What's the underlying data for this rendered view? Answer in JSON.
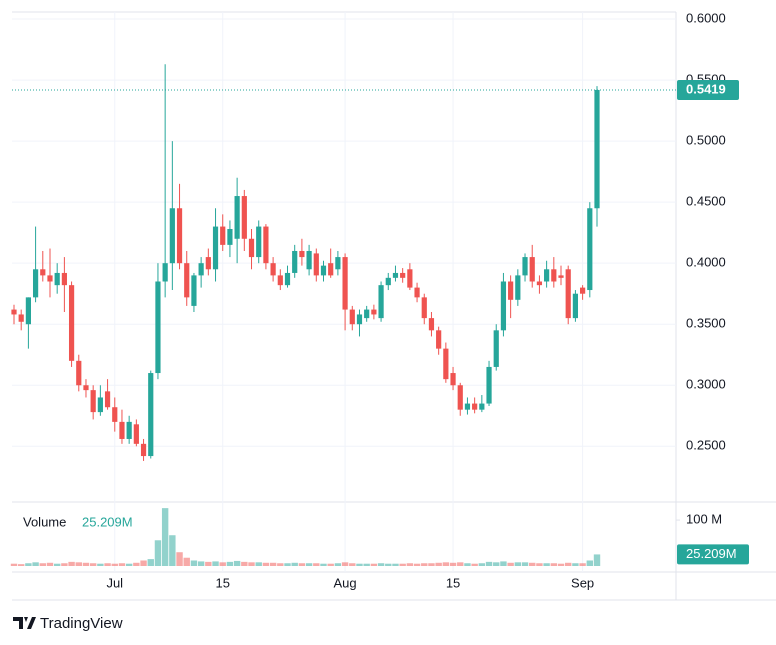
{
  "chart_data": {
    "type": "candlestick",
    "brand": "TradingView",
    "up_color": "#26a69a",
    "down_color": "#ef5350",
    "grid": true,
    "categories": [
      null,
      null,
      null,
      null,
      null,
      null,
      null,
      null,
      null,
      null,
      null,
      null,
      null,
      null,
      "Jul",
      null,
      null,
      null,
      null,
      null,
      null,
      null,
      null,
      null,
      null,
      null,
      null,
      null,
      null,
      "15",
      null,
      null,
      null,
      null,
      null,
      null,
      null,
      null,
      null,
      null,
      null,
      null,
      null,
      null,
      null,
      null,
      "Aug",
      null,
      null,
      null,
      null,
      null,
      null,
      null,
      null,
      null,
      null,
      null,
      null,
      null,
      null,
      "15",
      null,
      null,
      null,
      null,
      null,
      null,
      null,
      null,
      null,
      null,
      null,
      null,
      null,
      null,
      null,
      null,
      null,
      "Sep",
      null,
      null
    ],
    "open": [
      0.362,
      0.358,
      0.35,
      0.372,
      0.395,
      0.39,
      0.382,
      0.392,
      0.382,
      0.32,
      0.3,
      0.296,
      0.278,
      0.295,
      0.282,
      0.27,
      0.256,
      0.268,
      0.252,
      0.242,
      0.31,
      0.385,
      0.4,
      0.445,
      0.4,
      0.365,
      0.39,
      0.405,
      0.395,
      0.43,
      0.415,
      0.42,
      0.455,
      0.42,
      0.405,
      0.43,
      0.4,
      0.39,
      0.382,
      0.392,
      0.41,
      0.395,
      0.408,
      0.39,
      0.4,
      0.395,
      0.405,
      0.362,
      0.35,
      0.355,
      0.362,
      0.355,
      0.382,
      0.388,
      0.392,
      0.395,
      0.38,
      0.372,
      0.355,
      0.345,
      0.33,
      0.31,
      0.3,
      0.28,
      0.285,
      0.28,
      0.285,
      0.315,
      0.345,
      0.385,
      0.37,
      0.39,
      0.405,
      0.385,
      0.385,
      0.395,
      0.39,
      0.395,
      0.355,
      0.38,
      0.378,
      0.445
    ],
    "high": [
      0.366,
      0.362,
      0.372,
      0.43,
      0.41,
      0.412,
      0.4,
      0.405,
      0.385,
      0.325,
      0.305,
      0.3,
      0.3,
      0.305,
      0.29,
      0.28,
      0.275,
      0.272,
      0.256,
      0.312,
      0.4,
      0.563,
      0.5,
      0.465,
      0.41,
      0.392,
      0.405,
      0.412,
      0.445,
      0.44,
      0.435,
      0.47,
      0.46,
      0.428,
      0.435,
      0.432,
      0.405,
      0.395,
      0.398,
      0.415,
      0.42,
      0.415,
      0.412,
      0.402,
      0.412,
      0.41,
      0.408,
      0.365,
      0.362,
      0.365,
      0.366,
      0.385,
      0.392,
      0.398,
      0.396,
      0.4,
      0.384,
      0.375,
      0.36,
      0.348,
      0.335,
      0.315,
      0.302,
      0.29,
      0.29,
      0.292,
      0.32,
      0.35,
      0.392,
      0.39,
      0.395,
      0.408,
      0.415,
      0.39,
      0.402,
      0.405,
      0.398,
      0.398,
      0.378,
      0.382,
      0.45,
      0.545
    ],
    "low": [
      0.35,
      0.345,
      0.33,
      0.368,
      0.385,
      0.372,
      0.375,
      0.36,
      0.315,
      0.295,
      0.29,
      0.272,
      0.275,
      0.28,
      0.262,
      0.252,
      0.252,
      0.25,
      0.238,
      0.24,
      0.305,
      0.372,
      0.378,
      0.395,
      0.365,
      0.36,
      0.38,
      0.39,
      0.385,
      0.41,
      0.405,
      0.4,
      0.41,
      0.395,
      0.4,
      0.395,
      0.385,
      0.378,
      0.38,
      0.388,
      0.398,
      0.39,
      0.385,
      0.385,
      0.388,
      0.39,
      0.345,
      0.345,
      0.34,
      0.352,
      0.354,
      0.352,
      0.378,
      0.385,
      0.384,
      0.378,
      0.368,
      0.35,
      0.34,
      0.325,
      0.302,
      0.296,
      0.275,
      0.276,
      0.277,
      0.278,
      0.283,
      0.312,
      0.34,
      0.355,
      0.365,
      0.385,
      0.38,
      0.375,
      0.38,
      0.38,
      0.382,
      0.35,
      0.352,
      0.37,
      0.372,
      0.43
    ],
    "close": [
      0.358,
      0.352,
      0.372,
      0.395,
      0.39,
      0.385,
      0.392,
      0.382,
      0.32,
      0.3,
      0.296,
      0.278,
      0.29,
      0.282,
      0.27,
      0.256,
      0.27,
      0.252,
      0.242,
      0.31,
      0.385,
      0.4,
      0.445,
      0.4,
      0.372,
      0.39,
      0.4,
      0.395,
      0.43,
      0.415,
      0.428,
      0.455,
      0.42,
      0.405,
      0.43,
      0.4,
      0.39,
      0.382,
      0.392,
      0.41,
      0.405,
      0.41,
      0.39,
      0.398,
      0.39,
      0.405,
      0.362,
      0.35,
      0.358,
      0.362,
      0.358,
      0.382,
      0.388,
      0.392,
      0.388,
      0.38,
      0.372,
      0.355,
      0.345,
      0.33,
      0.305,
      0.3,
      0.28,
      0.285,
      0.28,
      0.285,
      0.315,
      0.345,
      0.385,
      0.37,
      0.39,
      0.405,
      0.385,
      0.382,
      0.395,
      0.385,
      0.388,
      0.355,
      0.375,
      0.375,
      0.445,
      0.5419
    ],
    "ylim": [
      0.206,
      0.6156
    ],
    "yticks": [
      {
        "value": 0.25,
        "label": "0.2500"
      },
      {
        "value": 0.3,
        "label": "0.3000"
      },
      {
        "value": 0.35,
        "label": "0.3500"
      },
      {
        "value": 0.4,
        "label": "0.4000"
      },
      {
        "value": 0.45,
        "label": "0.4500"
      },
      {
        "value": 0.5,
        "label": "0.5000"
      },
      {
        "value": 0.55,
        "label": "0.5500"
      },
      {
        "value": 0.6,
        "label": "0.6000"
      }
    ],
    "volume": {
      "name": "Volume",
      "values": [
        5,
        4,
        6,
        8,
        6,
        7,
        5,
        6,
        9,
        8,
        7,
        6,
        5,
        6,
        5,
        6,
        5,
        7,
        12,
        15,
        56,
        126,
        67,
        30,
        18,
        12,
        10,
        9,
        10,
        8,
        9,
        11,
        9,
        8,
        8,
        7,
        7,
        6,
        6,
        7,
        6,
        6,
        6,
        5,
        5,
        6,
        8,
        6,
        5,
        5,
        5,
        6,
        5,
        5,
        5,
        6,
        5,
        6,
        6,
        7,
        8,
        7,
        8,
        6,
        5,
        6,
        9,
        8,
        10,
        7,
        8,
        8,
        7,
        6,
        6,
        6,
        5,
        7,
        6,
        6,
        12,
        25.209
      ],
      "value_labels": [
        null,
        null,
        null,
        null,
        null,
        null,
        null,
        null,
        null,
        null,
        null,
        null,
        null,
        null,
        null,
        null,
        null,
        null,
        null,
        null,
        null,
        null,
        null,
        null,
        null,
        null,
        null,
        null,
        null,
        null,
        null,
        null,
        null,
        null,
        null,
        null,
        null,
        null,
        null,
        null,
        null,
        null,
        null,
        null,
        null,
        null,
        null,
        null,
        null,
        null,
        null,
        null,
        null,
        null,
        null,
        null,
        null,
        null,
        null,
        null,
        null,
        null,
        null,
        null,
        null,
        null,
        null,
        null,
        null,
        null,
        null,
        null,
        null,
        null,
        null,
        null,
        null,
        null,
        null,
        null,
        null,
        "25.209M"
      ],
      "ylim": [
        0,
        135
      ],
      "yticks": [
        {
          "value": 100,
          "label": "100 M"
        }
      ]
    }
  }
}
